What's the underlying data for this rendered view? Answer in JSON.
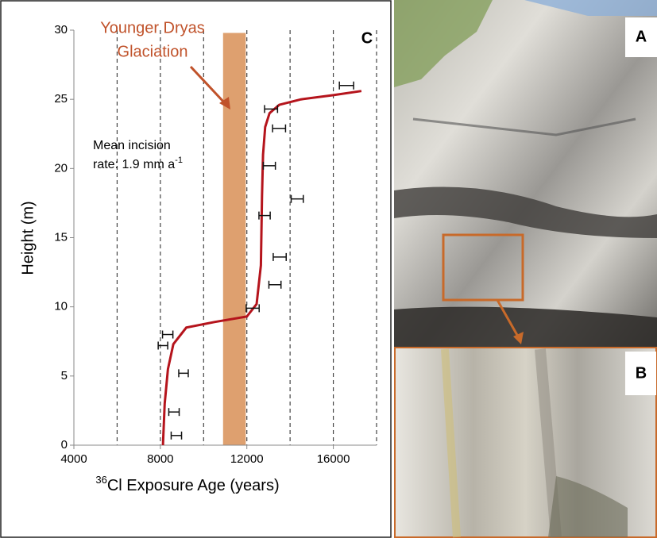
{
  "chart_data": {
    "type": "scatter",
    "ylabel": "Height (m)",
    "xlabel_sup": "36",
    "xlabel": "Cl Exposure Age (years)",
    "xlim": [
      4000,
      18000
    ],
    "ylim": [
      0,
      30
    ],
    "xticks": [
      4000,
      8000,
      12000,
      16000
    ],
    "yticks": [
      0,
      5,
      10,
      15,
      20,
      25,
      30
    ],
    "xgrid": [
      6000,
      8000,
      10000,
      12000,
      14000,
      16000,
      18000
    ],
    "points": {
      "x": [
        16610,
        13120,
        13490,
        13040,
        14330,
        12820,
        13520,
        13300,
        12270,
        8340,
        8120,
        9070,
        8630,
        8740
      ],
      "y": [
        26.0,
        24.3,
        22.9,
        20.2,
        17.8,
        16.6,
        13.6,
        11.6,
        9.9,
        8.0,
        7.2,
        5.2,
        2.4,
        0.7
      ],
      "xerr": [
        330,
        300,
        300,
        280,
        280,
        260,
        300,
        280,
        300,
        240,
        220,
        220,
        240,
        240
      ],
      "color": "#111111"
    },
    "curve": {
      "x": [
        8120,
        8200,
        8350,
        8600,
        9200,
        10500,
        12000,
        12450,
        12650,
        12700,
        12750,
        12850,
        13050,
        13500,
        14500,
        16000,
        17300
      ],
      "y": [
        0,
        3,
        5.5,
        7.3,
        8.5,
        8.9,
        9.3,
        10.2,
        13,
        18,
        21,
        23,
        24,
        24.6,
        25.0,
        25.3,
        25.6
      ],
      "color": "#b5141c"
    },
    "band": {
      "x": [
        10900,
        11950
      ],
      "y": [
        0,
        29.8
      ],
      "color": "#dea06f"
    },
    "annotation_color": "#c0522a",
    "annotations": [
      "Younger Dryas",
      "Glaciation"
    ],
    "rate_text": [
      "Mean incision",
      "rate: 1.9 mm a",
      "-1"
    ],
    "panel_labels": [
      "A",
      "B",
      "C"
    ]
  }
}
